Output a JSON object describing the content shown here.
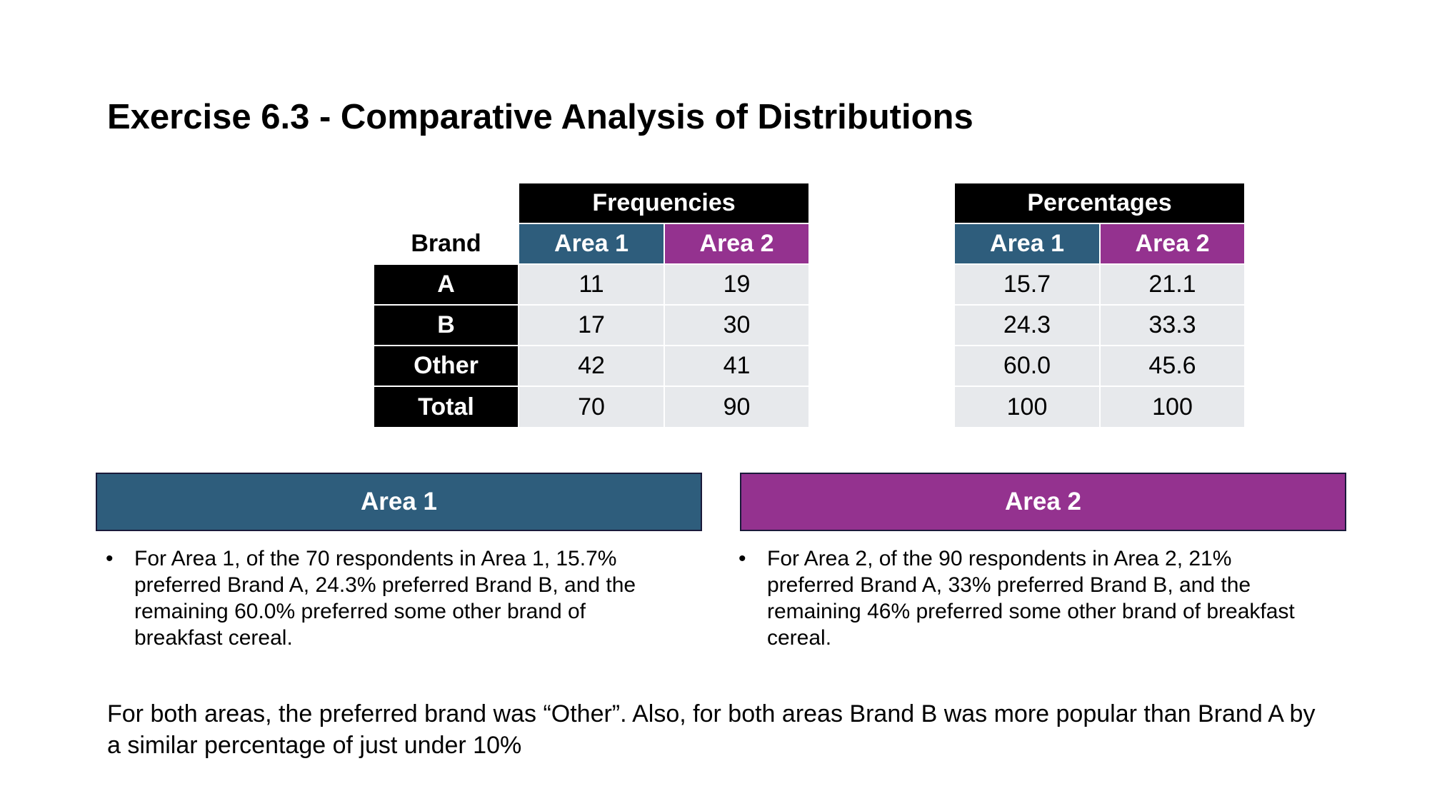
{
  "title": "Exercise 6.3 - Comparative Analysis of Distributions",
  "frequencies_table": {
    "group_header": "Frequencies",
    "row_header": "Brand",
    "columns": [
      "Area 1",
      "Area 2"
    ],
    "rows": [
      {
        "label": "A",
        "values": [
          "11",
          "19"
        ]
      },
      {
        "label": "B",
        "values": [
          "17",
          "30"
        ]
      },
      {
        "label": "Other",
        "values": [
          "42",
          "41"
        ]
      },
      {
        "label": "Total",
        "values": [
          "70",
          "90"
        ]
      }
    ]
  },
  "percentages_table": {
    "group_header": "Percentages",
    "columns": [
      "Area 1",
      "Area 2"
    ],
    "rows": [
      {
        "values": [
          "15.7",
          "21.1"
        ]
      },
      {
        "values": [
          "24.3",
          "33.3"
        ]
      },
      {
        "values": [
          "60.0",
          "45.6"
        ]
      },
      {
        "values": [
          "100",
          "100"
        ]
      }
    ]
  },
  "area1_panel": {
    "header": "Area 1",
    "bullet": "For Area 1, of the 70 respondents in Area 1, 15.7% preferred Brand A, 24.3% preferred Brand B, and the remaining 60.0% preferred some other brand of breakfast cereal."
  },
  "area2_panel": {
    "header": "Area 2",
    "bullet": "For Area 2, of the 90 respondents in Area 2, 21% preferred Brand A, 33% preferred Brand B, and the remaining 46% preferred some other brand of breakfast cereal."
  },
  "conclusion": "For both areas, the preferred brand was “Other”. Also, for both areas Brand B was more popular than Brand A by a similar percentage of just under 10%",
  "bullet_symbol": "•",
  "colors": {
    "header_black": "#000000",
    "area1_blue": "#2e5d7c",
    "area2_purple": "#94328f",
    "value_cell_gray": "#e7e9ec"
  }
}
